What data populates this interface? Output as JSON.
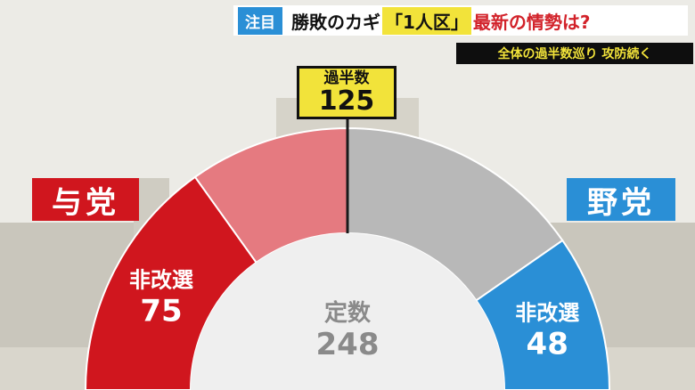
{
  "caption": {
    "tag": "注目",
    "text_a": "勝敗のカギ",
    "text_b": "「1人区」",
    "text_c": "最新の情勢は?"
  },
  "subcaption": "全体の過半数巡り 攻防続く",
  "colors": {
    "ruling": "#d0161e",
    "opposition": "#2a8fd6",
    "sign": "#f2e33a"
  },
  "chart_data": {
    "type": "pie",
    "layout": "semicircle",
    "total_label": "定数",
    "total": 248,
    "majority_label": "過半数",
    "majority": 125,
    "groups": [
      {
        "name": "与党",
        "segment_label": "非改選",
        "value": 75,
        "color": "#d0161e"
      },
      {
        "name": "与党",
        "segment_label": "",
        "value": 49,
        "color": "#e57a80"
      },
      {
        "name": "野党",
        "segment_label": "",
        "value": 76,
        "color": "#b8b8b8"
      },
      {
        "name": "野党",
        "segment_label": "非改選",
        "value": 48,
        "color": "#2a8fd6"
      }
    ],
    "ruling_label": "与党",
    "opposition_label": "野党"
  }
}
